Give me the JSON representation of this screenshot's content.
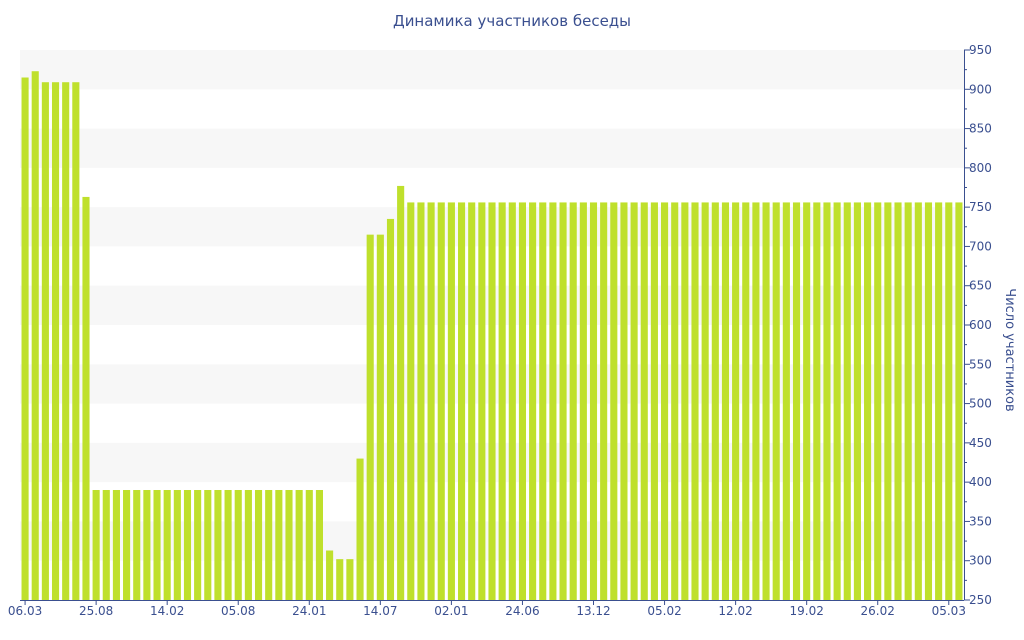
{
  "chart_data": {
    "type": "bar",
    "title": "Динамика участников беседы",
    "xlabel": "",
    "ylabel": "Число участников",
    "ylim": [
      250,
      950
    ],
    "y_ticks": [
      300,
      350,
      400,
      450,
      500,
      550,
      600,
      650,
      700,
      750,
      800,
      850,
      900,
      950
    ],
    "y_axis_position": "right",
    "x_tick_labels": [
      {
        "label": "06.03",
        "index": 0
      },
      {
        "label": "25.08",
        "index": 7
      },
      {
        "label": "14.02",
        "index": 14
      },
      {
        "label": "05.08",
        "index": 21
      },
      {
        "label": "24.01",
        "index": 28
      },
      {
        "label": "14.07",
        "index": 35
      },
      {
        "label": "02.01",
        "index": 42
      },
      {
        "label": "24.06",
        "index": 49
      },
      {
        "label": "13.12",
        "index": 56
      },
      {
        "label": "05.02",
        "index": 63
      },
      {
        "label": "12.02",
        "index": 70
      },
      {
        "label": "19.02",
        "index": 77
      },
      {
        "label": "26.02",
        "index": 84
      },
      {
        "label": "05.03",
        "index": 91
      }
    ],
    "values": [
      915,
      923,
      909,
      909,
      909,
      909,
      763,
      390,
      390,
      390,
      390,
      390,
      390,
      390,
      390,
      390,
      390,
      390,
      390,
      390,
      390,
      390,
      390,
      390,
      390,
      390,
      390,
      390,
      390,
      390,
      313,
      302,
      302,
      430,
      715,
      715,
      735,
      777,
      756,
      756,
      756,
      756,
      756,
      756,
      756,
      756,
      756,
      756,
      756,
      756,
      756,
      756,
      756,
      756,
      756,
      756,
      756,
      756,
      756,
      756,
      756,
      756,
      756,
      756,
      756,
      756,
      756,
      756,
      756,
      756,
      756,
      756,
      756,
      756,
      756,
      756,
      756,
      756,
      756,
      756,
      756,
      756,
      756,
      756,
      756,
      756,
      756,
      756,
      756,
      756,
      756,
      756,
      756
    ],
    "grid": "alternating horizontal bands",
    "colors": {
      "bar": "#bfe02c",
      "band": "#f7f7f7",
      "axis": "#3a4f8f",
      "text": "#3a4f8f"
    }
  }
}
